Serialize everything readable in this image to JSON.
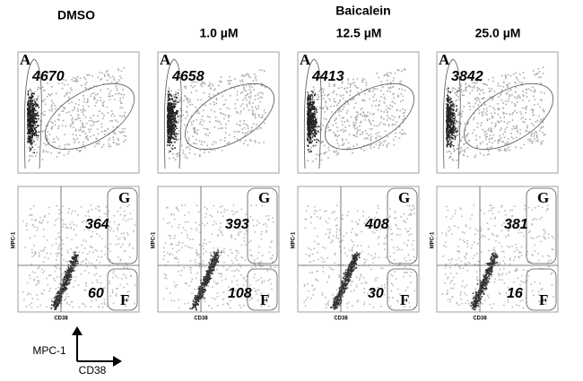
{
  "group_title": "Baicalein",
  "columns": [
    {
      "title": "DMSO",
      "gate_a": "A",
      "count_a": 4670,
      "gate_g": "G",
      "count_g": 364,
      "gate_f": "F",
      "count_f": 60,
      "x_label": "CD38",
      "y_label": "MPC-1"
    },
    {
      "title": "1.0 µM",
      "gate_a": "A",
      "count_a": 4658,
      "gate_g": "G",
      "count_g": 393,
      "gate_f": "F",
      "count_f": 108,
      "x_label": "CD38",
      "y_label": "MPC-1"
    },
    {
      "title": "12.5 µM",
      "gate_a": "A",
      "count_a": 4413,
      "gate_g": "G",
      "count_g": 408,
      "gate_f": "F",
      "count_f": 30,
      "x_label": "CD38",
      "y_label": "MPC-1"
    },
    {
      "title": "25.0 µM",
      "gate_a": "A",
      "count_a": 3842,
      "gate_g": "G",
      "count_g": 381,
      "gate_f": "F",
      "count_f": 16,
      "x_label": "CD38",
      "y_label": "MPC-1"
    }
  ],
  "legend": {
    "y": "MPC-1",
    "x": "CD38"
  }
}
